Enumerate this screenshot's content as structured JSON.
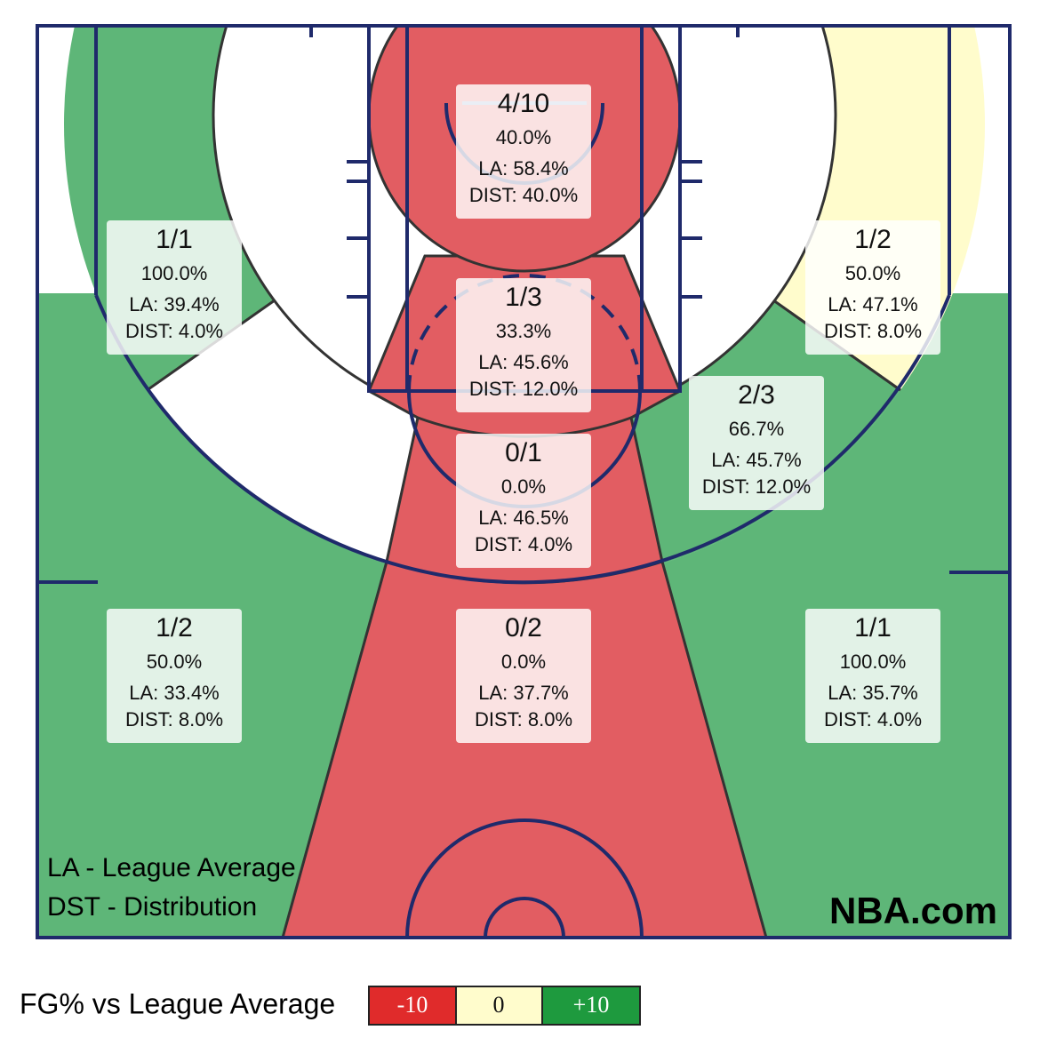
{
  "zones": [
    {
      "made": "4/10",
      "pct": "40.0%",
      "la": "LA: 58.4%",
      "dist": "DIST: 40.0%"
    },
    {
      "made": "1/3",
      "pct": "33.3%",
      "la": "LA: 45.6%",
      "dist": "DIST: 12.0%"
    },
    {
      "made": "0/1",
      "pct": "0.0%",
      "la": "LA: 46.5%",
      "dist": "DIST: 4.0%"
    },
    {
      "made": "0/2",
      "pct": "0.0%",
      "la": "LA: 37.7%",
      "dist": "DIST: 8.0%"
    },
    {
      "made": "1/1",
      "pct": "100.0%",
      "la": "LA: 39.4%",
      "dist": "DIST: 4.0%"
    },
    {
      "made": "1/2",
      "pct": "50.0%",
      "la": "LA: 47.1%",
      "dist": "DIST: 8.0%"
    },
    {
      "made": "2/3",
      "pct": "66.7%",
      "la": "LA: 45.7%",
      "dist": "DIST: 12.0%"
    },
    {
      "made": "1/2",
      "pct": "50.0%",
      "la": "LA: 33.4%",
      "dist": "DIST: 8.0%"
    },
    {
      "made": "1/1",
      "pct": "100.0%",
      "la": "LA: 35.7%",
      "dist": "DIST: 4.0%"
    }
  ],
  "notes": [
    "LA - League Average",
    "DST - Distribution"
  ],
  "brand": "NBA.com",
  "legend": {
    "title": "FG% vs League Average",
    "items": [
      "-10",
      "0",
      "+10"
    ]
  }
}
